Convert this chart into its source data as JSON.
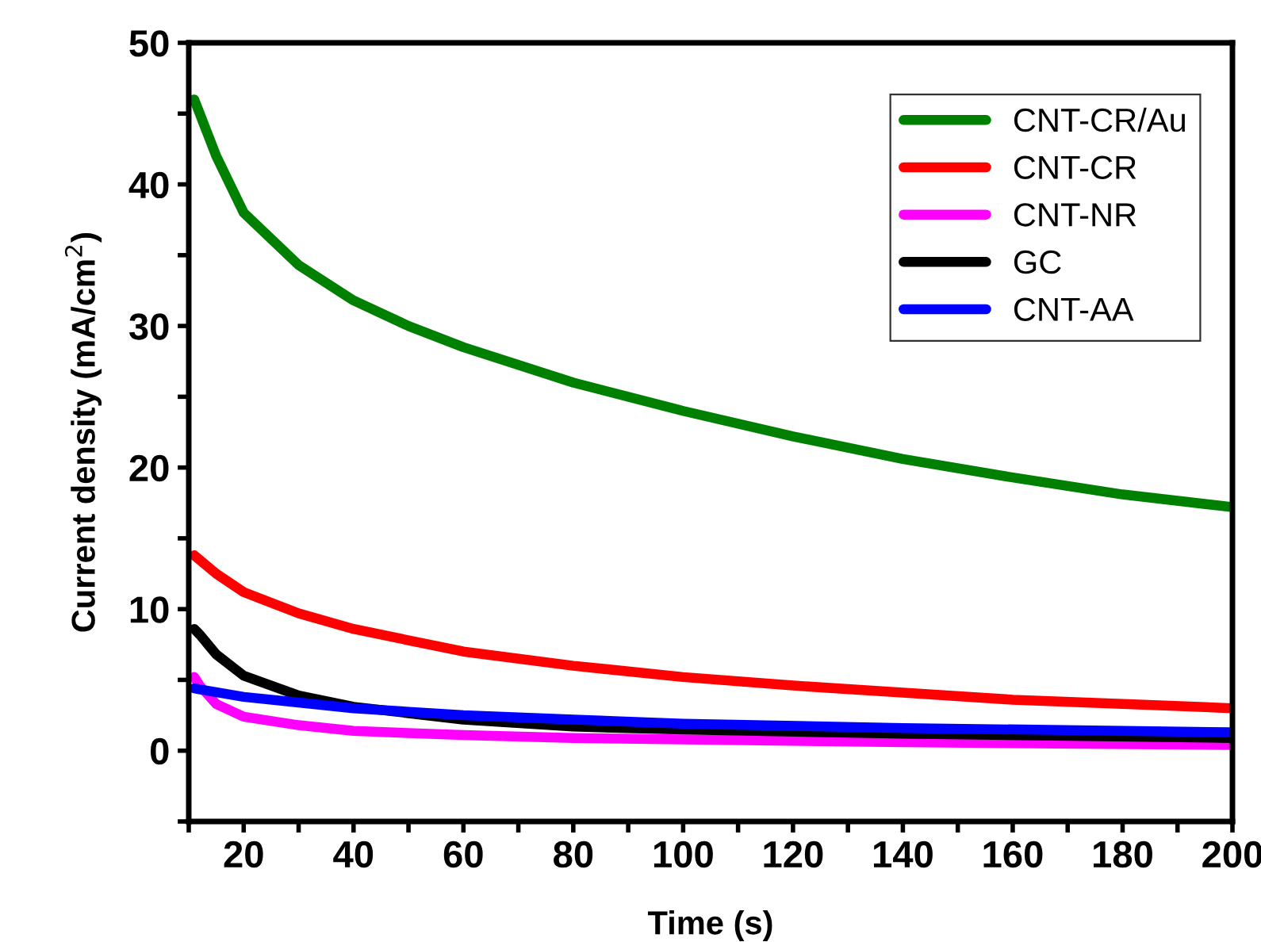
{
  "chart_data": {
    "type": "line",
    "xlabel": "Time (s)",
    "ylabel": "Current density (mA/cm$^{2}$)",
    "xlim": [
      10,
      200
    ],
    "ylim": [
      -5,
      50
    ],
    "xticks": [
      {
        "value": 10,
        "label": null
      },
      20,
      {
        "value": 30,
        "label": null
      },
      40,
      {
        "value": 50,
        "label": null
      },
      60,
      {
        "value": 70,
        "label": null
      },
      80,
      {
        "value": 90,
        "label": null
      },
      100,
      {
        "value": 110,
        "label": null
      },
      120,
      {
        "value": 130,
        "label": null
      },
      140,
      {
        "value": 150,
        "label": null
      },
      160,
      {
        "value": 170,
        "label": null
      },
      180,
      {
        "value": 190,
        "label": null
      },
      200
    ],
    "yticks": [
      {
        "value": -5,
        "label": null
      },
      0,
      {
        "value": 5,
        "label": null
      },
      10,
      {
        "value": 15,
        "label": null
      },
      20,
      {
        "value": 25,
        "label": null
      },
      30,
      {
        "value": 35,
        "label": null
      },
      40,
      {
        "value": 45,
        "label": null
      },
      50
    ],
    "grid": false,
    "legend": "top right",
    "marker": "none",
    "line_style": "solid",
    "series": [
      {
        "name": "CNT-CR/Au",
        "color": "#008000",
        "x": [
          11,
          15,
          20,
          30,
          40,
          50,
          60,
          80,
          100,
          120,
          140,
          160,
          180,
          200
        ],
        "values": [
          46,
          42,
          38,
          34.3,
          31.8,
          30,
          28.5,
          26,
          24,
          22.2,
          20.6,
          19.3,
          18.1,
          17.2
        ]
      },
      {
        "name": "CNT-CR",
        "color": "#ff0000",
        "x": [
          11,
          15,
          20,
          30,
          40,
          60,
          80,
          100,
          120,
          140,
          160,
          180,
          200
        ],
        "values": [
          13.8,
          12.5,
          11.2,
          9.7,
          8.6,
          7.0,
          6.0,
          5.2,
          4.6,
          4.1,
          3.6,
          3.3,
          3.0
        ]
      },
      {
        "name": "CNT-NR",
        "color": "#ff00ff",
        "x": [
          11,
          12,
          15,
          20,
          30,
          40,
          60,
          80,
          100,
          140,
          200
        ],
        "values": [
          5.2,
          4.6,
          3.3,
          2.4,
          1.8,
          1.4,
          1.1,
          0.9,
          0.8,
          0.6,
          0.4
        ]
      },
      {
        "name": "GC",
        "color": "#000000",
        "x": [
          11,
          12,
          15,
          20,
          30,
          40,
          60,
          80,
          100,
          140,
          200
        ],
        "values": [
          8.6,
          8.2,
          6.8,
          5.3,
          3.9,
          3.1,
          2.2,
          1.7,
          1.5,
          1.2,
          0.9
        ]
      },
      {
        "name": "CNT-AA",
        "color": "#0000ff",
        "x": [
          11,
          20,
          30,
          40,
          60,
          80,
          100,
          140,
          200
        ],
        "values": [
          4.4,
          3.8,
          3.4,
          3.0,
          2.5,
          2.2,
          1.9,
          1.6,
          1.3
        ]
      }
    ]
  }
}
